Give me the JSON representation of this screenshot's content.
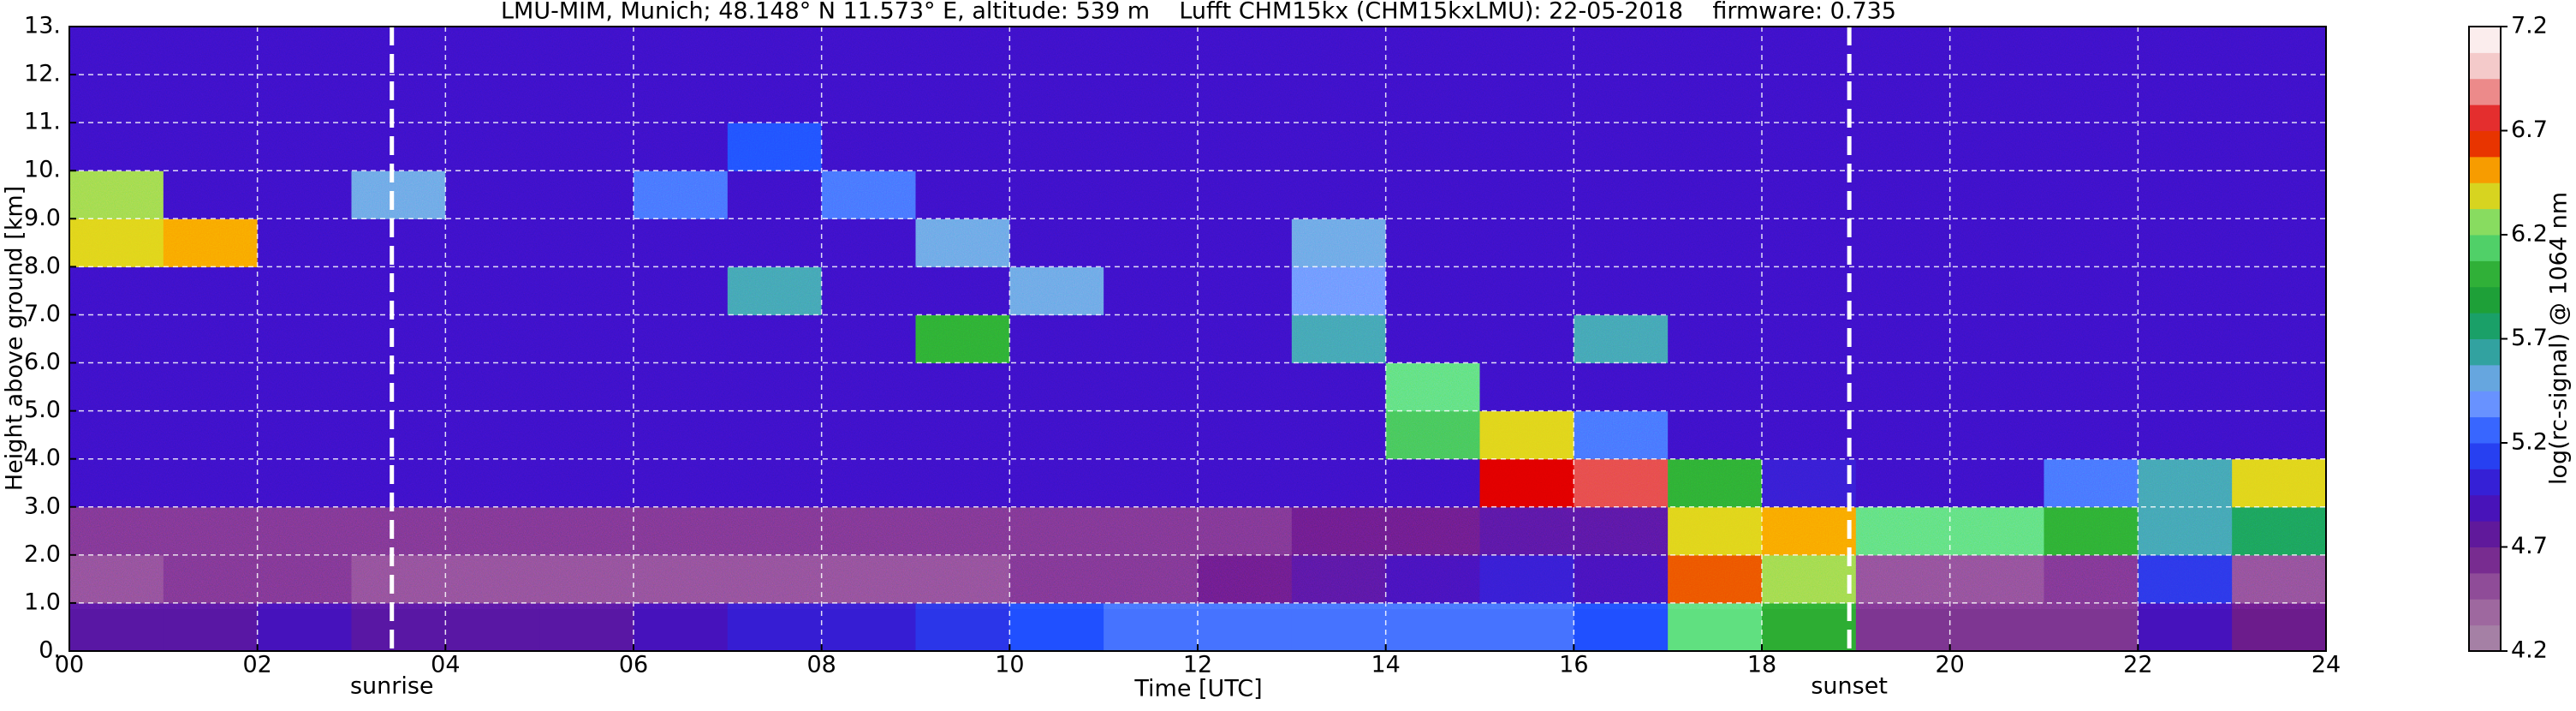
{
  "chart_data": {
    "type": "heatmap",
    "title": "LMU-MIM, Munich; 48.148° N 11.573° E, altitude: 539 m    Lufft CHM15kx (CHM15kxLMU): 22-05-2018    firmware: 0.735",
    "x_label": "Time [UTC]",
    "y_label": "Height above ground [km]",
    "colorbar_label": "log(rc-signal) @ 1064 nm",
    "xbins": [
      0,
      1,
      2,
      3,
      4,
      5,
      6,
      7,
      8,
      9,
      10,
      11,
      12,
      13,
      14,
      15,
      16,
      17,
      18,
      19,
      20,
      21,
      22,
      23,
      24
    ],
    "ybins": [
      0,
      1,
      2,
      3,
      4,
      5,
      6,
      7,
      8,
      9,
      10,
      11,
      12,
      13
    ],
    "values": [
      [
        4.8,
        4.8,
        4.9,
        4.8,
        4.8,
        4.8,
        4.9,
        5.0,
        5.0,
        5.1,
        5.2,
        5.3,
        5.3,
        5.3,
        5.3,
        5.3,
        5.2,
        6.2,
        6.0,
        4.6,
        4.6,
        4.6,
        4.9,
        4.7
      ],
      [
        4.5,
        4.6,
        4.6,
        4.5,
        4.5,
        4.5,
        4.5,
        4.5,
        4.5,
        4.5,
        4.6,
        4.6,
        4.7,
        4.8,
        4.9,
        5.0,
        4.9,
        6.6,
        6.3,
        4.5,
        4.5,
        4.6,
        5.1,
        4.5
      ],
      [
        4.6,
        4.6,
        4.6,
        4.6,
        4.6,
        4.6,
        4.6,
        4.6,
        4.6,
        4.6,
        4.6,
        4.6,
        4.6,
        4.7,
        4.7,
        4.8,
        4.8,
        6.4,
        6.5,
        6.2,
        6.2,
        6.0,
        5.6,
        5.8
      ],
      [
        4.95,
        4.95,
        4.95,
        4.95,
        4.95,
        4.95,
        4.95,
        4.95,
        4.95,
        4.95,
        4.95,
        4.95,
        4.95,
        4.95,
        4.95,
        6.7,
        6.8,
        6.0,
        5.0,
        4.95,
        4.95,
        5.3,
        5.6,
        6.4
      ],
      [
        4.95,
        4.95,
        4.95,
        4.95,
        4.95,
        4.95,
        4.95,
        4.95,
        4.95,
        4.95,
        4.95,
        4.95,
        4.95,
        4.95,
        6.1,
        6.4,
        5.3,
        4.95,
        4.95,
        4.95,
        4.95,
        4.95,
        4.95,
        4.95
      ],
      [
        4.95,
        4.95,
        4.95,
        4.95,
        4.95,
        4.95,
        4.95,
        4.95,
        4.95,
        4.95,
        4.95,
        4.95,
        4.95,
        4.95,
        6.2,
        4.95,
        4.95,
        4.95,
        4.95,
        4.95,
        4.95,
        4.95,
        4.95,
        4.95
      ],
      [
        4.95,
        4.95,
        4.95,
        4.95,
        4.95,
        4.95,
        4.95,
        4.95,
        4.95,
        6.0,
        4.95,
        4.95,
        4.95,
        5.6,
        4.95,
        4.95,
        5.6,
        4.95,
        4.95,
        4.95,
        4.95,
        4.95,
        4.95,
        4.95
      ],
      [
        4.95,
        4.95,
        4.95,
        4.95,
        4.95,
        4.95,
        4.95,
        5.6,
        4.95,
        4.95,
        5.5,
        4.95,
        4.95,
        5.4,
        4.95,
        4.95,
        4.95,
        4.95,
        4.95,
        4.95,
        4.95,
        4.95,
        4.95,
        4.95
      ],
      [
        6.4,
        6.5,
        4.95,
        4.95,
        4.95,
        4.95,
        4.95,
        4.95,
        4.95,
        5.5,
        4.95,
        4.95,
        4.95,
        5.5,
        4.95,
        4.95,
        4.95,
        4.95,
        4.95,
        4.95,
        4.95,
        4.95,
        4.95,
        4.95
      ],
      [
        6.3,
        4.95,
        4.95,
        5.5,
        4.95,
        4.95,
        5.3,
        4.95,
        5.3,
        4.95,
        4.95,
        4.95,
        4.95,
        4.95,
        4.95,
        4.95,
        4.95,
        4.95,
        4.95,
        4.95,
        4.95,
        4.95,
        4.95,
        4.95
      ],
      [
        4.95,
        4.95,
        4.95,
        4.95,
        4.95,
        4.95,
        4.95,
        5.2,
        4.95,
        4.95,
        4.95,
        4.95,
        4.95,
        4.95,
        4.95,
        4.95,
        4.95,
        4.95,
        4.95,
        4.95,
        4.95,
        4.95,
        4.95,
        4.95
      ],
      [
        4.95,
        4.95,
        4.95,
        4.95,
        4.95,
        4.95,
        4.95,
        4.95,
        4.95,
        4.95,
        4.95,
        4.95,
        4.95,
        4.95,
        4.95,
        4.95,
        4.95,
        4.95,
        4.95,
        4.95,
        4.95,
        4.95,
        4.95,
        4.95
      ],
      [
        4.95,
        4.95,
        4.95,
        4.95,
        4.95,
        4.95,
        4.95,
        4.95,
        4.95,
        4.95,
        4.95,
        4.95,
        4.95,
        4.95,
        4.95,
        4.95,
        4.95,
        4.95,
        4.95,
        4.95,
        4.95,
        4.95,
        4.95,
        4.95
      ]
    ],
    "xlim": [
      0,
      24
    ],
    "xticks": [
      {
        "value": 0,
        "label": "00"
      },
      {
        "value": 2,
        "label": "02"
      },
      {
        "value": 4,
        "label": "04"
      },
      {
        "value": 6,
        "label": "06"
      },
      {
        "value": 8,
        "label": "08"
      },
      10,
      12,
      14,
      16,
      18,
      20,
      22,
      24
    ],
    "ylim": [
      0,
      13
    ],
    "yticks": [
      {
        "value": 0,
        "label": "0."
      },
      {
        "value": 1,
        "label": "1.0"
      },
      {
        "value": 2,
        "label": "2.0"
      },
      {
        "value": 3,
        "label": "3.0"
      },
      {
        "value": 4,
        "label": "4.0"
      },
      {
        "value": 5,
        "label": "5.0"
      },
      {
        "value": 6,
        "label": "6.0"
      },
      {
        "value": 7,
        "label": "7.0"
      },
      {
        "value": 8,
        "label": "8.0"
      },
      {
        "value": 9,
        "label": "9.0"
      },
      {
        "value": 10,
        "label": "10."
      },
      {
        "value": 11,
        "label": "11."
      },
      {
        "value": 12,
        "label": "12."
      },
      {
        "value": 13,
        "label": "13."
      }
    ],
    "clim": [
      4.2,
      7.2
    ],
    "cticks": [
      4.2,
      4.7,
      5.2,
      5.7,
      6.2,
      6.7,
      7.2
    ],
    "colors": [
      "#a88ca8",
      "#9a5c9c",
      "#6c1c8c",
      "#3c10c8",
      "#2050ff",
      "#80a8ff",
      "#18a080",
      "#20a020",
      "#60e080",
      "#ffd000",
      "#e00000",
      "#f0b8b8",
      "#ffffff"
    ],
    "grid": true,
    "annotations": [
      {
        "text": "sunrise",
        "x": 3.43
      },
      {
        "text": "sunset",
        "x": 18.93
      }
    ]
  }
}
